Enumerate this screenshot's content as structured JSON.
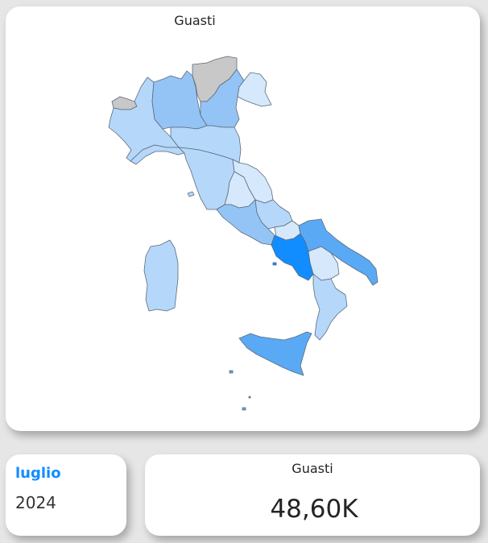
{
  "map": {
    "title": "Guasti",
    "colors": {
      "no_data": "#c8c8c8",
      "very_light": "#d6e8fb",
      "light": "#b5d7fa",
      "medium": "#94c4f6",
      "strong": "#5aa9f5",
      "strongest": "#118dff"
    },
    "regions": [
      {
        "name": "Valle d'Aosta",
        "level": "no_data"
      },
      {
        "name": "Trentino-Alto Adige",
        "level": "no_data"
      },
      {
        "name": "Piemonte",
        "level": "light"
      },
      {
        "name": "Lombardia",
        "level": "medium"
      },
      {
        "name": "Veneto",
        "level": "medium"
      },
      {
        "name": "Friuli-Venezia Giulia",
        "level": "very_light"
      },
      {
        "name": "Liguria",
        "level": "light"
      },
      {
        "name": "Emilia-Romagna",
        "level": "light"
      },
      {
        "name": "Toscana",
        "level": "light"
      },
      {
        "name": "Umbria",
        "level": "very_light"
      },
      {
        "name": "Marche",
        "level": "very_light"
      },
      {
        "name": "Lazio",
        "level": "medium"
      },
      {
        "name": "Abruzzo",
        "level": "light"
      },
      {
        "name": "Molise",
        "level": "very_light"
      },
      {
        "name": "Campania",
        "level": "strongest"
      },
      {
        "name": "Puglia",
        "level": "strong"
      },
      {
        "name": "Basilicata",
        "level": "very_light"
      },
      {
        "name": "Calabria",
        "level": "light"
      },
      {
        "name": "Sicilia",
        "level": "strong"
      },
      {
        "name": "Sardegna",
        "level": "light"
      }
    ]
  },
  "date_card": {
    "month": "luglio",
    "year": "2024"
  },
  "kpi_card": {
    "title": "Guasti",
    "value": "48,60K"
  }
}
